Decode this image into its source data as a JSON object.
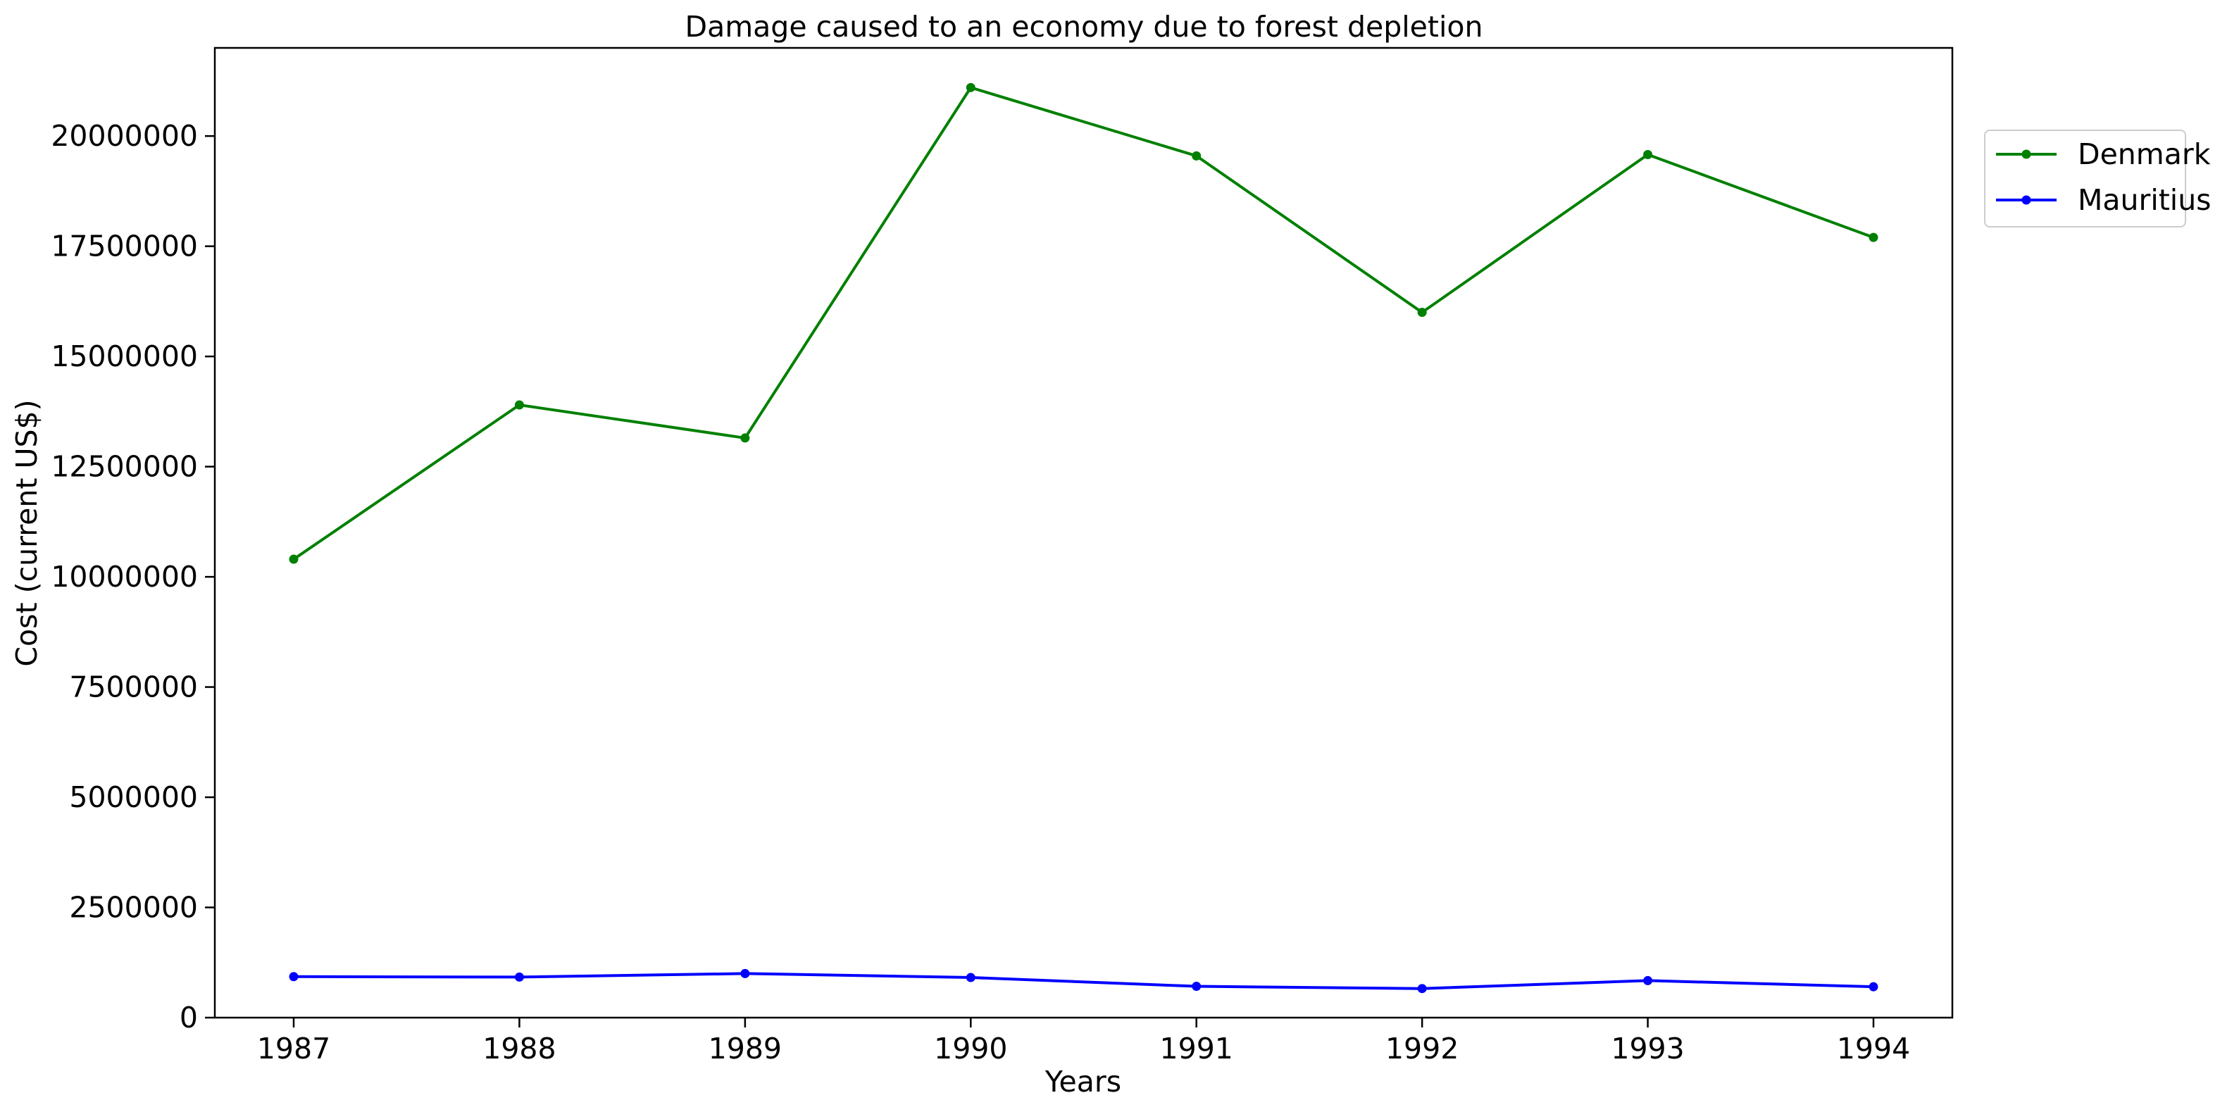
{
  "chart_data": {
    "type": "line",
    "title": "Damage caused to an economy due to forest depletion",
    "xlabel": "Years",
    "ylabel": "Cost (current US$)",
    "x": [
      "1987",
      "1988",
      "1989",
      "1990",
      "1991",
      "1992",
      "1993",
      "1994"
    ],
    "yticks": [
      0,
      2500000,
      5000000,
      7500000,
      10000000,
      12500000,
      15000000,
      17500000,
      20000000
    ],
    "ylim": [
      0,
      22000000
    ],
    "grid": false,
    "legend_position": "outside-top-right",
    "series": [
      {
        "name": "Denmark",
        "color": "#008000",
        "marker": "circle",
        "values": [
          10400000,
          13900000,
          13150000,
          21100000,
          19550000,
          16000000,
          19580000,
          17700000
        ]
      },
      {
        "name": "Mauritius",
        "color": "#0000ff",
        "marker": "circle",
        "values": [
          930000,
          920000,
          1000000,
          910000,
          710000,
          660000,
          840000,
          700000
        ]
      }
    ]
  }
}
